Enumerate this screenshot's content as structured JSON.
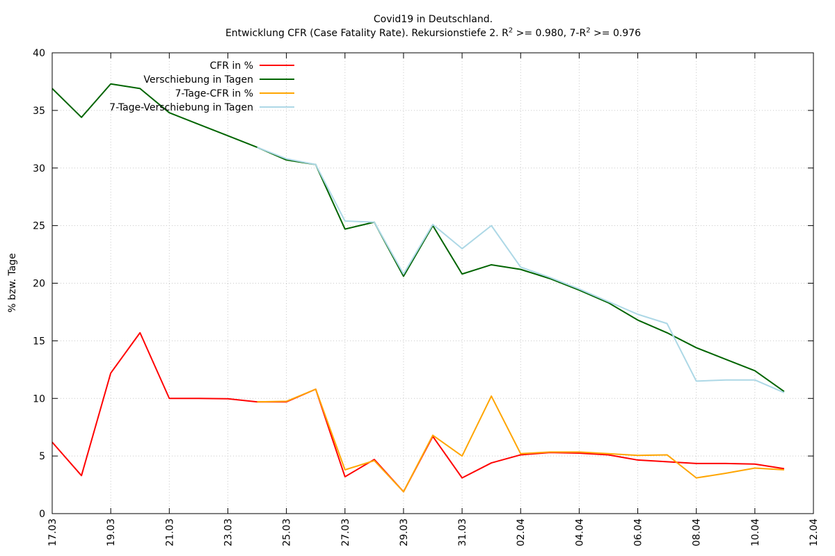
{
  "chart_data": {
    "type": "line",
    "title": "Covid19 in Deutschland.",
    "subtitle": {
      "prefix": "Entwicklung CFR (Case Fatality Rate). Rekursionstiefe 2. R",
      "sup1": "2",
      "middle": " >= 0.980, 7-R",
      "sup2": "2",
      "suffix": " >= 0.976"
    },
    "xlabel": "",
    "ylabel": "% bzw. Tage",
    "ylim": [
      0,
      40
    ],
    "yticks": [
      0,
      5,
      10,
      15,
      20,
      25,
      30,
      35,
      40
    ],
    "xlim": [
      "17.03",
      "12.04"
    ],
    "xticks": [
      "17.03",
      "19.03",
      "21.03",
      "23.03",
      "25.03",
      "27.03",
      "29.03",
      "31.03",
      "02.04",
      "04.04",
      "06.04",
      "08.04",
      "10.04",
      "12.04"
    ],
    "grid": true,
    "legend_position": "top-left",
    "series": [
      {
        "name": "CFR in %",
        "color": "#ff0000",
        "x": [
          "17.03",
          "18.03",
          "19.03",
          "20.03",
          "21.03",
          "22.03",
          "23.03",
          "24.03",
          "25.03",
          "26.03",
          "27.03",
          "28.03",
          "29.03",
          "30.03",
          "31.03",
          "01.04",
          "02.04",
          "03.04",
          "04.04",
          "05.04",
          "06.04",
          "07.04",
          "08.04",
          "09.04",
          "10.04",
          "11.04"
        ],
        "values": [
          6.2,
          3.3,
          12.2,
          15.7,
          10.0,
          10.0,
          9.97,
          9.7,
          9.7,
          10.8,
          3.2,
          4.7,
          1.9,
          6.7,
          3.1,
          4.4,
          5.1,
          5.3,
          5.25,
          5.1,
          4.65,
          4.5,
          4.35,
          4.35,
          4.3,
          3.9
        ]
      },
      {
        "name": "Verschiebung in Tagen",
        "color": "#006400",
        "x": [
          "17.03",
          "18.03",
          "19.03",
          "20.03",
          "21.03",
          "22.03",
          "23.03",
          "24.03",
          "25.03",
          "26.03",
          "27.03",
          "28.03",
          "29.03",
          "30.03",
          "31.03",
          "01.04",
          "02.04",
          "03.04",
          "04.04",
          "05.04",
          "06.04",
          "07.04",
          "08.04",
          "09.04",
          "10.04",
          "11.04"
        ],
        "values": [
          36.9,
          34.4,
          37.3,
          36.9,
          34.8,
          33.8,
          32.8,
          31.8,
          30.7,
          30.3,
          24.7,
          25.3,
          20.6,
          25.0,
          20.8,
          21.6,
          21.2,
          20.4,
          19.4,
          18.3,
          16.8,
          15.7,
          14.4,
          13.4,
          12.4,
          10.6
        ]
      },
      {
        "name": "7-Tage-CFR in %",
        "color": "#ffa500",
        "x": [
          "24.03",
          "25.03",
          "26.03",
          "27.03",
          "28.03",
          "29.03",
          "30.03",
          "31.03",
          "01.04",
          "02.04",
          "03.04",
          "04.04",
          "05.04",
          "06.04",
          "07.04",
          "08.04",
          "09.04",
          "10.04",
          "11.04"
        ],
        "values": [
          9.7,
          9.75,
          10.8,
          3.8,
          4.6,
          1.9,
          6.8,
          5.0,
          10.2,
          5.2,
          5.35,
          5.35,
          5.2,
          5.05,
          5.1,
          3.1,
          3.5,
          3.95,
          3.8
        ]
      },
      {
        "name": "7-Tage-Verschiebung in Tagen",
        "color": "#add8e6",
        "x": [
          "24.03",
          "25.03",
          "26.03",
          "27.03",
          "28.03",
          "29.03",
          "30.03",
          "31.03",
          "01.04",
          "02.04",
          "03.04",
          "04.04",
          "05.04",
          "06.04",
          "07.04",
          "08.04",
          "09.04",
          "10.04",
          "11.04"
        ],
        "values": [
          31.8,
          30.8,
          30.3,
          25.4,
          25.3,
          20.8,
          25.1,
          23.0,
          25.0,
          21.4,
          20.5,
          19.5,
          18.4,
          17.3,
          16.5,
          11.5,
          11.6,
          11.6,
          10.5
        ]
      }
    ]
  }
}
